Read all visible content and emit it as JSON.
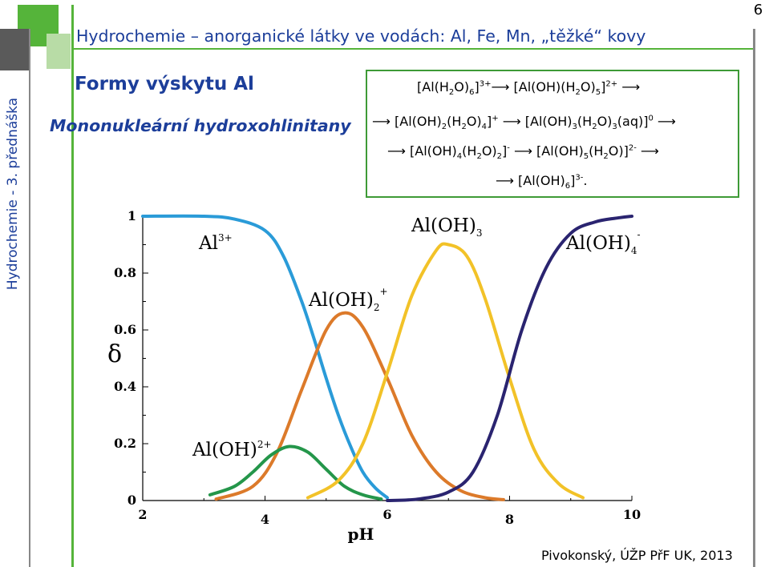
{
  "slide": {
    "header_title": "Hydrochemie – anorganické látky ve vodách: Al, Fe, Mn, „těžké“ kovy",
    "page_number": "6",
    "side_label": "Hydrochemie - 3. přednáška",
    "section_title": "Formy výskytu Al",
    "section_subtitle": "Mononukleární hydroxohlinitany",
    "footer": "Pivokonský, ÚŽP PřF UK, 2013"
  },
  "equations": {
    "eq1": {
      "a": "[Al(H",
      "a_sub": "2",
      "b": "O)",
      "b_sub": "6",
      "c": "]",
      "c_sup": "3+",
      "arrow1": "⟶",
      "d": " [Al(OH)(H",
      "d_sub": "2",
      "e": "O)",
      "e_sub": "5",
      "f": "]",
      "f_sup": "2+",
      "arrow2": " ⟶"
    },
    "eq2": {
      "arrow0": "⟶ ",
      "a": "[Al(OH)",
      "a_sub": "2",
      "b": "(H",
      "b_sub": "2",
      "c": "O)",
      "c_sub": "4",
      "d": "]",
      "d_sup": "+",
      "arrow1": " ⟶ ",
      "e": "[Al(OH)",
      "e_sub": "3",
      "f": "(H",
      "f_sub": "2",
      "g": "O)",
      "g_sub": "3",
      "h": "(aq)]",
      "h_sup": "0",
      "arrow2": " ⟶"
    },
    "eq3": {
      "arrow0": "⟶ ",
      "a": "[Al(OH)",
      "a_sub": "4",
      "b": "(H",
      "b_sub": "2",
      "c": "O)",
      "c_sub": "2",
      "d": "]",
      "d_sup": "-",
      "arrow1": " ⟶ ",
      "e": "[Al(OH)",
      "e_sub": "5",
      "f": "(H",
      "f_sub": "2",
      "g": "O)]",
      "g_sup": "2-",
      "arrow2": " ⟶"
    },
    "eq4": {
      "arrow0": "⟶ ",
      "a": "[Al(OH)",
      "a_sub": "6",
      "b": "]",
      "b_sup": "3-",
      "c": "."
    }
  },
  "chart_data": {
    "type": "line",
    "xlabel": "pH",
    "ylabel": "δ",
    "xlim": [
      2,
      10
    ],
    "ylim": [
      0,
      1
    ],
    "x_ticks": [
      2,
      4,
      6,
      8,
      10
    ],
    "y_ticks": [
      0,
      0.2,
      0.4,
      0.6,
      0.8,
      1
    ],
    "y_tick_labels": [
      "0",
      "0.2",
      "0.4",
      "0.6",
      "0.8",
      "1"
    ],
    "grid": false,
    "series": [
      {
        "name": "Al",
        "name_sup": "3+",
        "color": "#2a9bd8",
        "x": [
          2.0,
          3.0,
          3.5,
          4.0,
          4.3,
          4.6,
          4.8,
          5.0,
          5.2,
          5.4,
          5.6,
          5.8,
          6.0
        ],
        "y": [
          1.0,
          1.0,
          0.99,
          0.95,
          0.86,
          0.7,
          0.57,
          0.43,
          0.3,
          0.19,
          0.1,
          0.045,
          0.01
        ]
      },
      {
        "name": "Al(OH)",
        "name_sub": "2",
        "name_sup": "+",
        "color": "#dc7a2a",
        "x": [
          3.2,
          3.8,
          4.2,
          4.6,
          5.0,
          5.3,
          5.6,
          6.0,
          6.4,
          6.8,
          7.2,
          7.6,
          7.9
        ],
        "y": [
          0.005,
          0.05,
          0.17,
          0.39,
          0.6,
          0.66,
          0.61,
          0.43,
          0.23,
          0.1,
          0.035,
          0.01,
          0.003
        ]
      },
      {
        "name": "Al(OH)",
        "name_sup": "2+",
        "color": "#24964a",
        "x": [
          3.1,
          3.5,
          3.8,
          4.1,
          4.4,
          4.7,
          5.0,
          5.3,
          5.6,
          5.9
        ],
        "y": [
          0.02,
          0.05,
          0.1,
          0.16,
          0.19,
          0.17,
          0.11,
          0.05,
          0.02,
          0.005
        ]
      },
      {
        "name": "Al(OH)",
        "name_sub": "3",
        "color": "#f2c228",
        "x": [
          4.7,
          5.2,
          5.6,
          6.0,
          6.4,
          6.8,
          7.0,
          7.3,
          7.6,
          8.0,
          8.4,
          8.8,
          9.2
        ],
        "y": [
          0.01,
          0.07,
          0.2,
          0.45,
          0.72,
          0.88,
          0.9,
          0.86,
          0.71,
          0.43,
          0.18,
          0.06,
          0.01
        ]
      },
      {
        "name": "Al(OH)",
        "name_sub": "4",
        "name_sup": "-",
        "color": "#2a2470",
        "x": [
          6.0,
          6.5,
          7.0,
          7.4,
          7.8,
          8.2,
          8.6,
          9.0,
          9.4,
          9.8,
          10.0
        ],
        "y": [
          0.0,
          0.005,
          0.03,
          0.1,
          0.3,
          0.6,
          0.82,
          0.94,
          0.98,
          0.995,
          1.0
        ]
      }
    ]
  }
}
